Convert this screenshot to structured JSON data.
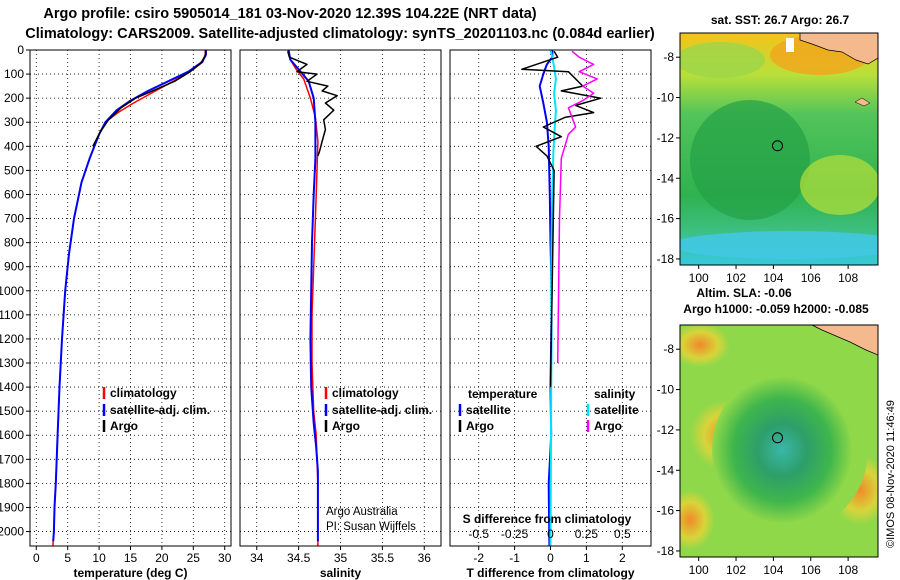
{
  "header": {
    "line1": "Argo profile: csiro 5905014_181 03-Nov-2020 12.39S 104.22E (NRT data)",
    "line2": "Climatology: CARS2009. Satellite-adjusted climatology: synTS_20201103.nc (0.084d earlier)"
  },
  "colors": {
    "climatology": "#ff0000",
    "satellite": "#0000ff",
    "argo": "#000000",
    "satellite_s": "#00e5ff",
    "argo_s": "#ff00ff"
  },
  "chart_data": [
    {
      "type": "line",
      "id": "temperature",
      "xlabel": "temperature (deg C)",
      "xlim": [
        -1,
        31
      ],
      "ylim": [
        2060,
        0
      ],
      "xticks": [
        0,
        5,
        10,
        15,
        20,
        25,
        30
      ],
      "yticks": [
        0,
        100,
        200,
        300,
        400,
        500,
        600,
        700,
        800,
        900,
        1000,
        1100,
        1200,
        1300,
        1400,
        1500,
        1600,
        1700,
        1800,
        1900,
        2000
      ],
      "legend": [
        "climatology",
        "satellite-adj. clim.",
        "Argo"
      ],
      "series": [
        {
          "name": "climatology",
          "color": "#ff0000",
          "x": [
            26.9,
            26.9,
            26.5,
            25.0,
            22.5,
            19.0,
            15.5,
            13.0,
            11.0,
            10.0,
            8.5,
            7.2,
            6.0,
            5.2,
            4.6,
            4.1,
            3.7,
            3.4,
            3.1,
            2.9,
            2.8,
            2.7,
            2.65
          ],
          "y": [
            0,
            20,
            50,
            80,
            120,
            170,
            220,
            260,
            300,
            350,
            450,
            550,
            700,
            850,
            1000,
            1200,
            1400,
            1600,
            1800,
            1900,
            2000,
            2040,
            2060
          ]
        },
        {
          "name": "satellite-adj. clim.",
          "color": "#0000ff",
          "x": [
            27.0,
            27.0,
            26.4,
            24.2,
            21.0,
            17.8,
            15.0,
            12.8,
            11.0,
            10.0,
            8.5,
            7.2,
            6.0,
            5.2,
            4.6,
            4.1,
            3.7,
            3.4,
            3.1,
            2.9,
            2.8,
            2.7
          ],
          "y": [
            0,
            20,
            50,
            90,
            130,
            170,
            210,
            250,
            300,
            350,
            450,
            550,
            700,
            850,
            1000,
            1200,
            1400,
            1600,
            1800,
            1900,
            2000,
            2040
          ]
        },
        {
          "name": "Argo",
          "color": "#000000",
          "x": [
            27.0,
            26.9,
            26.2,
            24.5,
            22.0,
            18.5,
            15.8,
            13.5,
            11.5,
            10.2,
            9.0
          ],
          "y": [
            5,
            25,
            55,
            90,
            130,
            170,
            200,
            240,
            290,
            340,
            400
          ]
        }
      ]
    },
    {
      "type": "line",
      "id": "salinity",
      "xlabel": "salinity",
      "xlim": [
        33.8,
        36.2
      ],
      "ylim": [
        2060,
        0
      ],
      "xticks": [
        34,
        34.5,
        35,
        35.5,
        36
      ],
      "legend": [
        "climatology",
        "satellite-adj. clim.",
        "Argo"
      ],
      "note1": "Argo Australia",
      "note2": "PI: Susan Wijffels",
      "series": [
        {
          "name": "climatology",
          "color": "#ff0000",
          "x": [
            34.38,
            34.4,
            34.47,
            34.56,
            34.64,
            34.7,
            34.73,
            34.72,
            34.7,
            34.68,
            34.66,
            34.66,
            34.68,
            34.71,
            34.72,
            34.73,
            34.73,
            34.73
          ],
          "y": [
            0,
            40,
            80,
            120,
            200,
            280,
            380,
            500,
            700,
            900,
            1100,
            1300,
            1500,
            1600,
            1700,
            1800,
            1900,
            2060
          ]
        },
        {
          "name": "satellite-adj. clim.",
          "color": "#0000ff",
          "x": [
            34.38,
            34.4,
            34.5,
            34.62,
            34.68,
            34.7,
            34.7,
            34.68,
            34.66,
            34.65,
            34.64,
            34.65,
            34.68,
            34.71,
            34.73,
            34.73,
            34.73
          ],
          "y": [
            0,
            40,
            80,
            130,
            200,
            300,
            450,
            600,
            800,
            1000,
            1200,
            1400,
            1550,
            1650,
            1750,
            1900,
            2040
          ]
        },
        {
          "name": "Argo",
          "color": "#000000",
          "x": [
            34.37,
            34.39,
            34.6,
            34.48,
            34.72,
            34.6,
            34.85,
            34.78,
            34.96,
            34.82,
            34.92,
            34.8,
            34.82,
            34.78,
            34.75,
            34.73
          ],
          "y": [
            5,
            30,
            60,
            90,
            100,
            130,
            150,
            170,
            190,
            220,
            250,
            290,
            330,
            380,
            420,
            440
          ]
        }
      ]
    },
    {
      "type": "line",
      "id": "difference",
      "xlabel": "T difference from climatology",
      "xlabel2": "S difference from climatology",
      "xlim": [
        -2.8,
        2.8
      ],
      "ylim": [
        2060,
        0
      ],
      "xticks": [
        -2,
        -1,
        0,
        1,
        2
      ],
      "xticks_s": [
        "-0.5",
        "-0.25",
        "0",
        "0.25",
        "0.5"
      ],
      "legend_t_head": "temperature",
      "legend_s_head": "salinity",
      "legend": [
        "satellite",
        "Argo",
        "satellite",
        "Argo"
      ],
      "series": [
        {
          "name": "T satellite",
          "color": "#0000ff",
          "x": [
            0.05,
            0.05,
            -0.1,
            -0.2,
            -0.3,
            -0.2,
            -0.1,
            -0.05,
            -0.02,
            0,
            0.03,
            0.02,
            0,
            0.02,
            -0.05,
            -0.03
          ],
          "y": [
            0,
            30,
            60,
            100,
            150,
            220,
            300,
            400,
            600,
            800,
            1000,
            1200,
            1400,
            1600,
            1800,
            2060
          ]
        },
        {
          "name": "S satellite",
          "color": "#00e5ff",
          "x": [
            0,
            0.05,
            0.1,
            0.15,
            0.1,
            0.15,
            0.12,
            0.08,
            0.05,
            0.03,
            0.02,
            0.03,
            0.02,
            0.01,
            0
          ],
          "y": [
            0,
            30,
            70,
            120,
            180,
            250,
            320,
            420,
            600,
            800,
            1000,
            1200,
            1400,
            1700,
            2060
          ]
        },
        {
          "name": "T Argo",
          "color": "#000000",
          "x": [
            0.1,
            0.2,
            -0.8,
            0.5,
            0.9,
            0.3,
            1.4,
            0.7,
            1.2,
            0.4,
            -0.2,
            0.3,
            -0.4,
            -0.1,
            0.1,
            0.0
          ],
          "y": [
            5,
            30,
            80,
            90,
            150,
            170,
            200,
            230,
            260,
            280,
            320,
            360,
            400,
            440,
            500,
            1400
          ]
        },
        {
          "name": "S Argo",
          "color": "#ff00ff",
          "x": [
            0.6,
            0.8,
            1.2,
            0.8,
            1.3,
            0.9,
            1.2,
            0.9,
            0.5,
            0.6,
            0.7,
            0.5,
            0.4,
            0.3,
            0.25,
            0.2
          ],
          "y": [
            5,
            30,
            60,
            90,
            120,
            150,
            180,
            210,
            240,
            280,
            320,
            350,
            400,
            450,
            700,
            1300
          ]
        }
      ]
    },
    {
      "type": "heatmap",
      "id": "sst_map",
      "title": "sat. SST: 26.7 Argo: 26.7",
      "xlim": [
        99,
        109.6
      ],
      "ylim": [
        -18.3,
        -6.8
      ],
      "xticks": [
        100,
        102,
        104,
        106,
        108
      ],
      "yticks": [
        -8,
        -10,
        -12,
        -14,
        -16,
        -18
      ],
      "marker": [
        104.22,
        -12.39
      ]
    },
    {
      "type": "heatmap",
      "id": "sla_map",
      "title1": "Altim. SLA: -0.06",
      "title2": "Argo h1000: -0.059 h2000: -0.085",
      "xlim": [
        99,
        109.6
      ],
      "ylim": [
        -18.3,
        -6.8
      ],
      "xticks": [
        100,
        102,
        104,
        106,
        108
      ],
      "yticks": [
        -8,
        -10,
        -12,
        -14,
        -16,
        -18
      ],
      "marker": [
        104.22,
        -12.39
      ]
    }
  ],
  "footer": {
    "credit": "©IMOS 08-Nov-2020 11:46:49"
  }
}
